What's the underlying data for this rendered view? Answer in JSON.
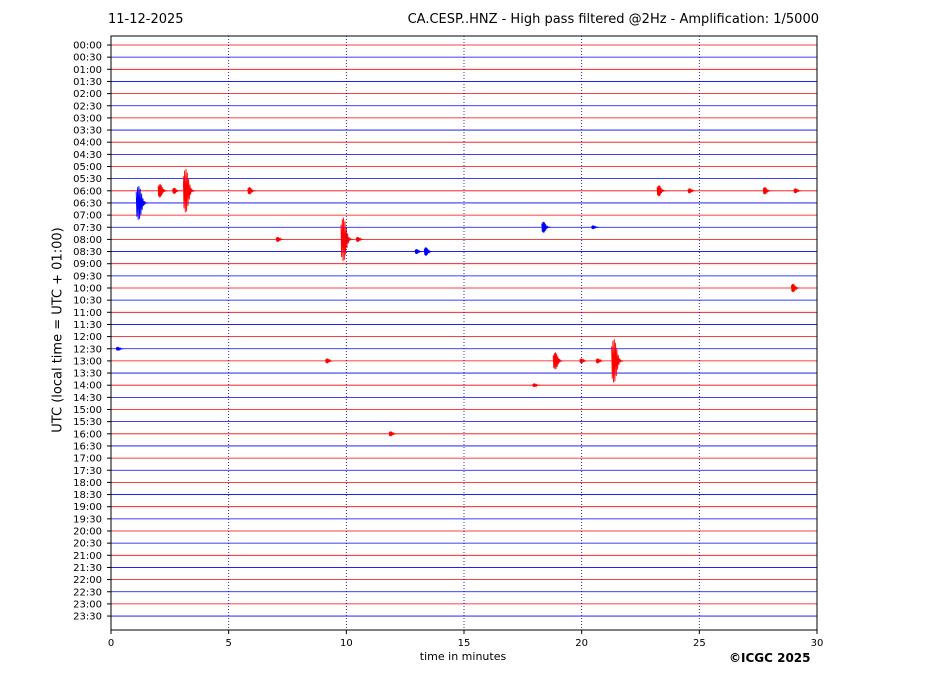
{
  "header": {
    "date": "11-12-2025",
    "title": "CA.CESP..HNZ - High pass filtered @2Hz - Amplification: 1/5000"
  },
  "footer": {
    "copyright": "©ICGC 2025"
  },
  "colors": {
    "trace_a": "#ff0000",
    "trace_b": "#0000ff",
    "grid": "#000080",
    "axis": "#000000"
  },
  "chart_data": {
    "type": "line",
    "title": "CA.CESP..HNZ - High pass filtered @2Hz - Amplification: 1/5000",
    "xlabel": "time in minutes",
    "ylabel": "UTC (local time = UTC + 01:00)",
    "xlim": [
      0,
      30
    ],
    "x_ticks": [
      0,
      5,
      10,
      15,
      20,
      25,
      30
    ],
    "vertical_grid_minutes": [
      5,
      10,
      15,
      20,
      25
    ],
    "grid": "dotted vertical lines",
    "row_labels": [
      "00:00",
      "00:30",
      "01:00",
      "01:30",
      "02:00",
      "02:30",
      "03:00",
      "03:30",
      "04:00",
      "04:30",
      "05:00",
      "05:30",
      "06:00",
      "06:30",
      "07:00",
      "07:30",
      "08:00",
      "08:30",
      "09:00",
      "09:30",
      "10:00",
      "10:30",
      "11:00",
      "11:30",
      "12:00",
      "12:30",
      "13:00",
      "13:30",
      "14:00",
      "14:30",
      "15:00",
      "15:30",
      "16:00",
      "16:30",
      "17:00",
      "17:30",
      "18:00",
      "18:30",
      "19:00",
      "19:30",
      "20:00",
      "20:30",
      "21:00",
      "21:30",
      "22:00",
      "22:30",
      "23:00",
      "23:30"
    ],
    "trace_colors": "alternating red / blue",
    "events": [
      {
        "row": "06:00",
        "minute": 2.1,
        "amplitude": 0.55
      },
      {
        "row": "06:00",
        "minute": 2.7,
        "amplitude": 0.25
      },
      {
        "row": "06:00",
        "minute": 3.2,
        "amplitude": 1.8
      },
      {
        "row": "06:00",
        "minute": 5.9,
        "amplitude": 0.3
      },
      {
        "row": "06:00",
        "minute": 23.3,
        "amplitude": 0.45
      },
      {
        "row": "06:00",
        "minute": 24.6,
        "amplitude": 0.2
      },
      {
        "row": "06:00",
        "minute": 27.8,
        "amplitude": 0.3
      },
      {
        "row": "06:00",
        "minute": 29.1,
        "amplitude": 0.2
      },
      {
        "row": "06:30",
        "minute": 1.2,
        "amplitude": 1.4
      },
      {
        "row": "07:30",
        "minute": 18.4,
        "amplitude": 0.45
      },
      {
        "row": "07:30",
        "minute": 20.5,
        "amplitude": 0.15
      },
      {
        "row": "08:00",
        "minute": 7.1,
        "amplitude": 0.2
      },
      {
        "row": "08:00",
        "minute": 9.9,
        "amplitude": 1.8
      },
      {
        "row": "08:00",
        "minute": 10.5,
        "amplitude": 0.2
      },
      {
        "row": "08:30",
        "minute": 13.0,
        "amplitude": 0.2
      },
      {
        "row": "08:30",
        "minute": 13.4,
        "amplitude": 0.35
      },
      {
        "row": "10:00",
        "minute": 29.0,
        "amplitude": 0.35
      },
      {
        "row": "12:30",
        "minute": 0.3,
        "amplitude": 0.15
      },
      {
        "row": "13:00",
        "minute": 9.2,
        "amplitude": 0.2
      },
      {
        "row": "13:00",
        "minute": 18.9,
        "amplitude": 0.7
      },
      {
        "row": "13:00",
        "minute": 20.0,
        "amplitude": 0.2
      },
      {
        "row": "13:00",
        "minute": 20.7,
        "amplitude": 0.2
      },
      {
        "row": "13:00",
        "minute": 21.4,
        "amplitude": 1.8
      },
      {
        "row": "14:00",
        "minute": 18.0,
        "amplitude": 0.15
      },
      {
        "row": "16:00",
        "minute": 11.9,
        "amplitude": 0.2
      }
    ]
  }
}
